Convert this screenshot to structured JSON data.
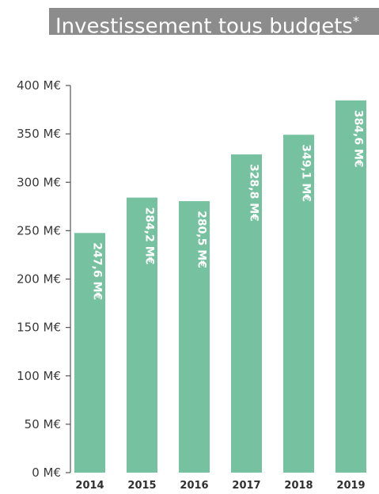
{
  "title": "Investissement tous budgets",
  "title_mark": "*",
  "chart_data": {
    "type": "bar",
    "title": "Investissement tous budgets*",
    "categories": [
      "2014",
      "2015",
      "2016",
      "2017",
      "2018",
      "2019"
    ],
    "values": [
      247.6,
      284.2,
      280.5,
      328.8,
      349.1,
      384.6
    ],
    "data_labels": [
      "247,6 M€",
      "284,2 M€",
      "280,5 M€",
      "328,8 M€",
      "349,1 M€",
      "384,6 M€"
    ],
    "y_ticks": [
      "0 M€",
      "50 M€",
      "100 M€",
      "150 M€",
      "200 M€",
      "250 M€",
      "300 M€",
      "350 M€",
      "400 M€"
    ],
    "ylim": [
      0,
      400
    ],
    "xlabel": "",
    "ylabel": "",
    "grid": false,
    "colors": {
      "bar": "#76c2a0",
      "axis": "#555555",
      "title_bg": "#8c8c8c"
    }
  }
}
